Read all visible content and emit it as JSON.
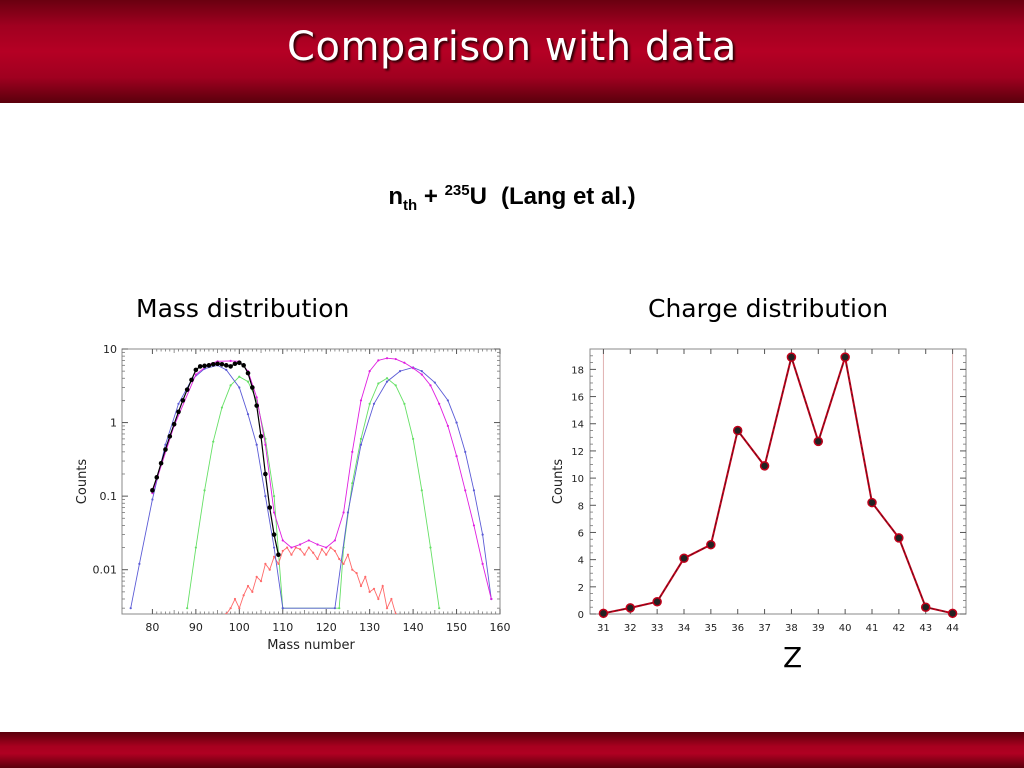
{
  "slide": {
    "title": "Comparison with data",
    "reaction": {
      "n": "n",
      "n_sub": "th",
      "plus": "+",
      "u_sup": "235",
      "u": "U",
      "ref": "(Lang et al.)"
    }
  },
  "colors": {
    "black": "#000000",
    "blue": "#5b5bd6",
    "magenta": "#e01fe0",
    "green": "#66e066",
    "red": "#ff6a6a",
    "charge_line": "#c0001a",
    "marker": "#222222",
    "frame": "#888888",
    "ref_line": "#e0b0b0"
  },
  "chart_data": [
    {
      "type": "line",
      "panel_title": "Mass distribution",
      "xlabel": "Mass number",
      "ylabel": "Counts",
      "yscale": "log",
      "xlim": [
        73,
        160
      ],
      "ylim": [
        0.0025,
        10
      ],
      "xticks": [
        "80",
        "90",
        "100",
        "110",
        "120",
        "130",
        "140",
        "150",
        "160"
      ],
      "yticks": [
        "0.01",
        "0.1",
        "1",
        "10"
      ],
      "grid": false,
      "series": [
        {
          "style": "data",
          "color": "black",
          "x": [
            80,
            81,
            82,
            83,
            84,
            85,
            86,
            87,
            88,
            89,
            90,
            91,
            92,
            93,
            94,
            95,
            96,
            97,
            98,
            99,
            100,
            101,
            102,
            103,
            104,
            105,
            106,
            107,
            108,
            109
          ],
          "y": [
            0.12,
            0.18,
            0.28,
            0.43,
            0.65,
            0.95,
            1.4,
            2.0,
            2.8,
            3.8,
            5.2,
            5.8,
            5.9,
            6.0,
            6.2,
            6.3,
            6.2,
            6.0,
            5.8,
            6.3,
            6.5,
            6.0,
            4.7,
            3.0,
            1.7,
            0.65,
            0.2,
            0.07,
            0.03,
            0.016
          ]
        },
        {
          "style": "calc",
          "color": "magenta",
          "x": [
            80,
            85,
            90,
            93,
            95,
            98,
            100,
            102,
            104,
            106,
            108,
            110,
            112,
            114,
            116,
            118,
            120,
            122,
            124,
            126,
            128,
            130,
            132,
            134,
            136,
            138,
            140,
            142,
            144,
            146,
            148,
            150,
            152,
            154,
            156,
            158
          ],
          "y": [
            0.11,
            0.9,
            4.5,
            6.2,
            6.8,
            6.9,
            6.8,
            5.0,
            2.2,
            0.5,
            0.06,
            0.025,
            0.02,
            0.022,
            0.025,
            0.022,
            0.02,
            0.025,
            0.06,
            0.4,
            2.0,
            5.0,
            7.0,
            7.5,
            7.3,
            6.5,
            5.5,
            4.5,
            3.2,
            1.8,
            0.9,
            0.35,
            0.12,
            0.04,
            0.012,
            0.004
          ]
        },
        {
          "style": "calc",
          "color": "blue",
          "x": [
            75,
            77,
            80,
            83,
            86,
            89,
            92,
            95,
            97,
            100,
            102,
            104,
            106,
            108,
            110,
            122,
            125,
            128,
            131,
            134,
            137,
            140,
            142,
            145,
            148,
            150,
            152,
            154,
            156,
            158
          ],
          "y": [
            0.003,
            0.012,
            0.09,
            0.5,
            1.8,
            3.8,
            5.4,
            6.0,
            5.2,
            3.0,
            1.3,
            0.5,
            0.1,
            0.02,
            0.003,
            0.003,
            0.06,
            0.5,
            1.8,
            3.6,
            5.0,
            5.6,
            5.0,
            3.5,
            2.0,
            1.0,
            0.4,
            0.12,
            0.03,
            0.004
          ]
        },
        {
          "style": "calc",
          "color": "green",
          "x": [
            88,
            90,
            92,
            94,
            96,
            98,
            100,
            102,
            104,
            106,
            108,
            110,
            123,
            124,
            126,
            128,
            130,
            132,
            134,
            136,
            138,
            140,
            142,
            144,
            146
          ],
          "y": [
            0.003,
            0.02,
            0.12,
            0.55,
            1.6,
            3.2,
            4.2,
            3.6,
            2.0,
            0.6,
            0.1,
            0.003,
            0.003,
            0.02,
            0.15,
            0.6,
            1.8,
            3.4,
            4.0,
            3.2,
            1.8,
            0.6,
            0.12,
            0.02,
            0.003
          ]
        },
        {
          "style": "calc",
          "color": "red",
          "x": [
            97,
            98,
            99,
            100,
            101,
            102,
            103,
            104,
            105,
            106,
            107,
            108,
            109,
            110,
            111,
            112,
            113,
            114,
            115,
            116,
            117,
            118,
            119,
            120,
            121,
            122,
            123,
            124,
            125,
            126,
            127,
            128,
            129,
            130,
            131,
            132,
            133,
            134,
            135,
            136
          ],
          "y": [
            0.0025,
            0.003,
            0.004,
            0.003,
            0.0045,
            0.006,
            0.005,
            0.008,
            0.007,
            0.012,
            0.01,
            0.015,
            0.012,
            0.018,
            0.02,
            0.016,
            0.02,
            0.019,
            0.016,
            0.02,
            0.017,
            0.014,
            0.019,
            0.016,
            0.02,
            0.018,
            0.014,
            0.012,
            0.016,
            0.01,
            0.009,
            0.006,
            0.008,
            0.005,
            0.0055,
            0.004,
            0.006,
            0.003,
            0.004,
            0.0025
          ]
        }
      ]
    },
    {
      "type": "line",
      "panel_title": "Charge distribution",
      "xlabel": "Z",
      "ylabel": "Counts",
      "xlim": [
        30.5,
        44.5
      ],
      "ylim": [
        0,
        19.5
      ],
      "xticks": [
        "31",
        "32",
        "33",
        "34",
        "35",
        "36",
        "37",
        "38",
        "39",
        "40",
        "41",
        "42",
        "43",
        "44"
      ],
      "yticks": [
        "0",
        "2",
        "4",
        "6",
        "8",
        "10",
        "12",
        "14",
        "16",
        "18"
      ],
      "grid": false,
      "x": [
        31,
        32,
        33,
        34,
        35,
        36,
        37,
        38,
        39,
        40,
        41,
        42,
        43,
        44
      ],
      "y": [
        0.05,
        0.45,
        0.9,
        4.1,
        5.1,
        13.5,
        10.9,
        18.9,
        12.7,
        18.9,
        8.2,
        5.6,
        0.5,
        0.05
      ]
    }
  ]
}
